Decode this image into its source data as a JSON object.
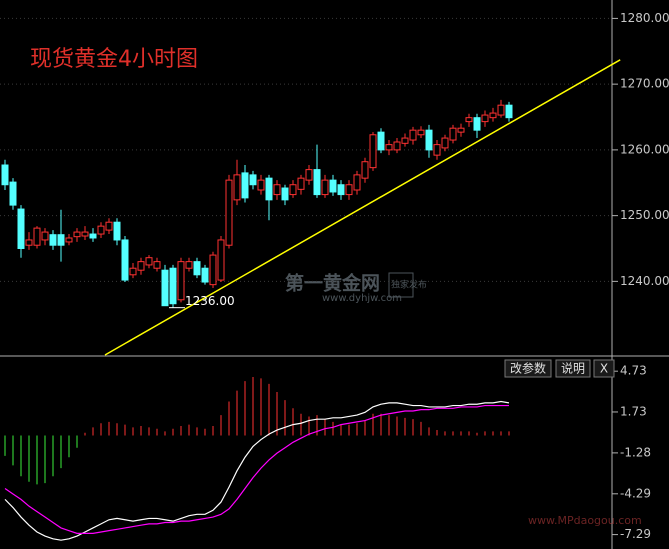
{
  "chart_data": [
    {
      "type": "candlestick",
      "title": "现货黄金4小时图",
      "open": [
        1257.7,
        1255.1,
        1251.0,
        1245.5,
        1245.5,
        1246.3,
        1247.1,
        1247.1,
        1246.0,
        1246.8,
        1246.9,
        1247.2,
        1247.2,
        1247.8,
        1249.0,
        1246.3,
        1241.0,
        1241.7,
        1242.5,
        1242.0,
        1241.7,
        1242.0,
        1237.2,
        1242.0,
        1243.0,
        1242.0,
        1239.5,
        1240.2,
        1245.5,
        1252.4,
        1256.5,
        1256.2,
        1253.9,
        1255.7,
        1253.2,
        1254.2,
        1253.2,
        1254.0,
        1255.4,
        1257.0,
        1253.2,
        1255.4,
        1254.7,
        1253.2,
        1253.9,
        1255.7,
        1257.3,
        1262.7,
        1260.0,
        1260.0,
        1261.0,
        1261.5,
        1262.3,
        1263.0,
        1259.2,
        1260.3,
        1261.5,
        1262.7,
        1264.3,
        1264.9,
        1264.3,
        1264.9,
        1265.3,
        1266.8
      ],
      "high": [
        1258.5,
        1255.7,
        1251.6,
        1247.5,
        1248.4,
        1248.1,
        1247.8,
        1250.9,
        1247.2,
        1248.1,
        1248.4,
        1248.1,
        1249.0,
        1249.6,
        1249.6,
        1246.9,
        1242.8,
        1243.6,
        1244.0,
        1243.6,
        1242.5,
        1242.5,
        1243.6,
        1243.6,
        1243.6,
        1242.5,
        1244.5,
        1246.9,
        1256.2,
        1258.5,
        1257.7,
        1256.8,
        1256.2,
        1256.2,
        1255.4,
        1254.7,
        1255.4,
        1256.2,
        1257.7,
        1260.8,
        1256.2,
        1256.2,
        1255.4,
        1255.4,
        1256.8,
        1258.8,
        1262.7,
        1263.3,
        1261.5,
        1261.8,
        1262.5,
        1263.5,
        1263.6,
        1263.8,
        1261.5,
        1262.3,
        1263.8,
        1264.0,
        1265.5,
        1265.5,
        1266.0,
        1266.4,
        1267.6,
        1267.3
      ],
      "low": [
        1253.9,
        1250.9,
        1243.6,
        1244.8,
        1245.0,
        1245.5,
        1244.8,
        1243.0,
        1245.5,
        1246.0,
        1246.3,
        1246.0,
        1246.6,
        1247.2,
        1245.5,
        1239.9,
        1240.5,
        1241.0,
        1242.0,
        1241.5,
        1236.5,
        1236.0,
        1236.8,
        1241.5,
        1240.5,
        1239.5,
        1239.0,
        1239.9,
        1245.0,
        1251.6,
        1252.0,
        1254.0,
        1253.2,
        1249.3,
        1252.4,
        1251.6,
        1252.7,
        1253.2,
        1254.7,
        1252.7,
        1252.7,
        1253.0,
        1252.4,
        1252.4,
        1253.2,
        1255.0,
        1256.8,
        1259.5,
        1259.2,
        1259.5,
        1260.5,
        1260.8,
        1261.8,
        1258.8,
        1258.5,
        1259.8,
        1261.0,
        1262.0,
        1263.5,
        1261.8,
        1263.5,
        1264.3,
        1264.9,
        1264.3
      ],
      "close": [
        1254.7,
        1251.6,
        1245.0,
        1246.3,
        1248.1,
        1247.5,
        1245.5,
        1245.5,
        1246.6,
        1247.5,
        1247.5,
        1246.6,
        1248.4,
        1249.0,
        1246.3,
        1240.2,
        1242.0,
        1243.0,
        1243.6,
        1243.0,
        1236.3,
        1236.6,
        1243.0,
        1243.0,
        1241.0,
        1239.9,
        1244.0,
        1246.3,
        1255.4,
        1256.2,
        1252.7,
        1254.7,
        1255.4,
        1252.4,
        1254.7,
        1252.4,
        1254.7,
        1255.7,
        1257.0,
        1253.2,
        1255.4,
        1253.6,
        1253.2,
        1254.7,
        1256.2,
        1258.2,
        1262.3,
        1260.0,
        1260.8,
        1261.2,
        1261.8,
        1263.0,
        1263.0,
        1260.0,
        1260.8,
        1261.8,
        1263.3,
        1263.3,
        1264.9,
        1263.0,
        1265.3,
        1265.6,
        1266.8,
        1264.9
      ],
      "up_color": "#ff3232",
      "down_color": "#54ffff",
      "ylim": [
        1228.8,
        1282.8
      ],
      "yticks": [
        {
          "value": 1240,
          "label": "1240.00"
        },
        {
          "value": 1250,
          "label": "1250.00"
        },
        {
          "value": 1260,
          "label": "1260.00"
        },
        {
          "value": 1270,
          "label": "1270.00"
        },
        {
          "value": 1280,
          "label": "1280.00"
        }
      ],
      "grid": true,
      "annotations": [
        {
          "text": "1236.00",
          "value": 1236.0
        }
      ],
      "trendline": {
        "x": [
          12.5,
          76.9
        ],
        "values": [
          1228.8,
          1273.7
        ],
        "color": "#ffff00"
      },
      "watermarks": [
        "第一黄金网",
        "www.dyhjw.com",
        "独家发布",
        "www.MPdaogou.com"
      ]
    },
    {
      "type": "macd",
      "buttons": [
        "改参数",
        "说明",
        "X"
      ],
      "histogram": [
        -1.5,
        -2.2,
        -3.0,
        -3.4,
        -3.6,
        -3.5,
        -3.0,
        -2.4,
        -1.6,
        -0.9,
        0.2,
        0.6,
        0.9,
        1.0,
        0.9,
        0.8,
        0.6,
        0.7,
        0.6,
        0.5,
        0.3,
        0.5,
        0.7,
        0.8,
        0.6,
        0.5,
        0.7,
        1.5,
        2.5,
        3.3,
        4.0,
        4.3,
        4.2,
        3.8,
        3.2,
        2.6,
        2.0,
        1.6,
        1.4,
        1.5,
        1.2,
        1.0,
        0.8,
        0.8,
        0.9,
        1.1,
        1.6,
        1.6,
        1.5,
        1.4,
        1.3,
        1.2,
        1.0,
        0.6,
        0.4,
        0.3,
        0.3,
        0.3,
        0.3,
        0.2,
        0.3,
        0.3,
        0.3,
        0.3
      ],
      "pos_color": "#ff3232",
      "neg_color": "#3cf03c",
      "series": [
        {
          "color": "#ffffff",
          "values": [
            -4.7,
            -5.3,
            -6.0,
            -6.6,
            -7.1,
            -7.4,
            -7.6,
            -7.7,
            -7.6,
            -7.4,
            -7.1,
            -6.8,
            -6.5,
            -6.2,
            -6.1,
            -6.2,
            -6.3,
            -6.2,
            -6.1,
            -6.1,
            -6.2,
            -6.3,
            -6.1,
            -5.9,
            -5.8,
            -5.8,
            -5.5,
            -4.9,
            -3.8,
            -2.6,
            -1.6,
            -0.8,
            -0.3,
            0.1,
            0.4,
            0.6,
            0.8,
            0.9,
            1.1,
            1.2,
            1.2,
            1.3,
            1.3,
            1.4,
            1.5,
            1.7,
            2.1,
            2.3,
            2.4,
            2.4,
            2.3,
            2.2,
            2.2,
            2.1,
            2.1,
            2.1,
            2.2,
            2.2,
            2.3,
            2.3,
            2.4,
            2.4,
            2.5,
            2.4
          ]
        },
        {
          "color": "#ff00ff",
          "values": [
            -3.9,
            -4.3,
            -4.7,
            -5.2,
            -5.6,
            -6.0,
            -6.4,
            -6.8,
            -7.0,
            -7.2,
            -7.2,
            -7.2,
            -7.1,
            -7.0,
            -6.9,
            -6.8,
            -6.7,
            -6.6,
            -6.5,
            -6.5,
            -6.4,
            -6.4,
            -6.3,
            -6.3,
            -6.2,
            -6.1,
            -6.0,
            -5.8,
            -5.4,
            -4.7,
            -3.9,
            -3.1,
            -2.4,
            -1.8,
            -1.3,
            -0.9,
            -0.5,
            -0.2,
            0.1,
            0.3,
            0.5,
            0.6,
            0.8,
            0.9,
            1.0,
            1.1,
            1.3,
            1.5,
            1.6,
            1.7,
            1.8,
            1.8,
            1.9,
            1.9,
            2.0,
            2.0,
            2.0,
            2.1,
            2.1,
            2.1,
            2.2,
            2.2,
            2.2,
            2.2
          ]
        }
      ],
      "ylim": [
        -8.35,
        5.7
      ],
      "yticks": [
        -7.29,
        -4.29,
        -1.28,
        1.73,
        4.73
      ]
    }
  ]
}
